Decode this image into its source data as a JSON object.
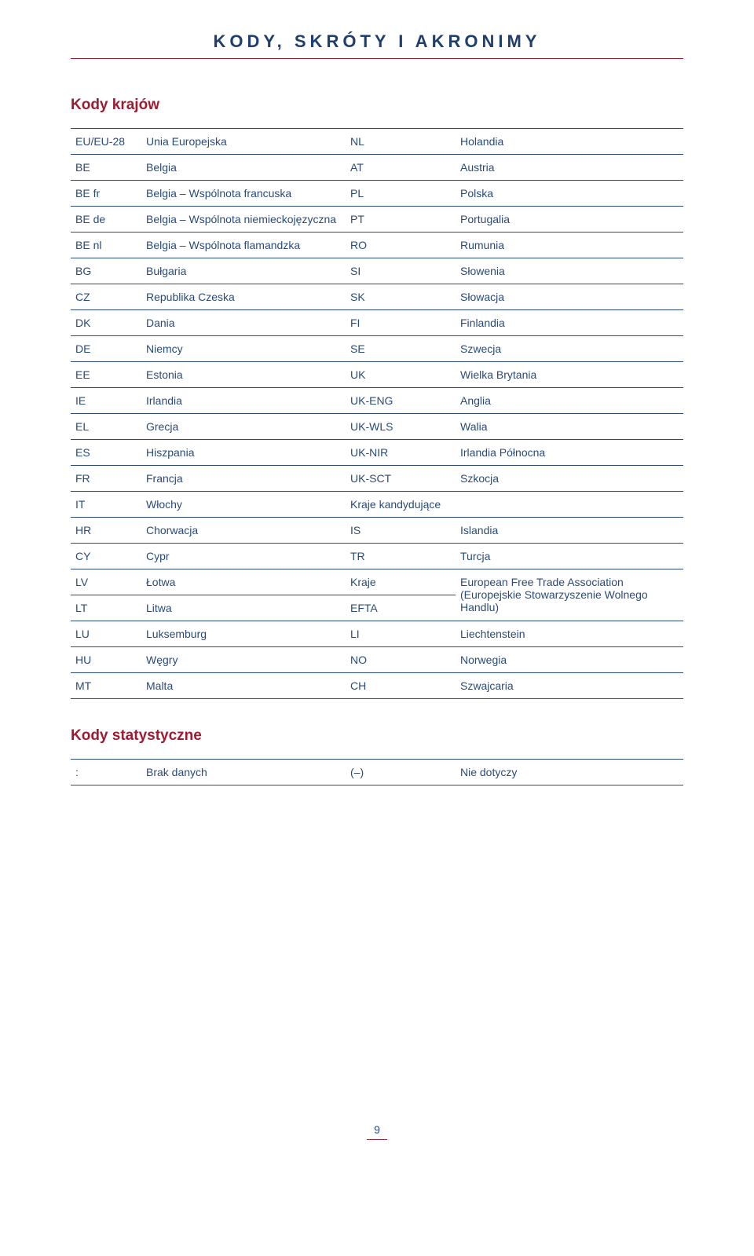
{
  "title": "KODY, SKRÓTY I AKRONIMY",
  "section1_heading": "Kody krajów",
  "rows": [
    {
      "c1": "EU/EU-28",
      "c2": "Unia Europejska",
      "c3": "NL",
      "c4": "Holandia"
    },
    {
      "c1": "BE",
      "c2": "Belgia",
      "c3": "AT",
      "c4": "Austria"
    },
    {
      "c1": "BE fr",
      "c2": "Belgia – Wspólnota francuska",
      "c3": "PL",
      "c4": "Polska"
    },
    {
      "c1": "BE de",
      "c2": "Belgia – Wspólnota niemieckojęzyczna",
      "c3": "PT",
      "c4": "Portugalia"
    },
    {
      "c1": "BE nl",
      "c2": "Belgia – Wspólnota flamandzka",
      "c3": "RO",
      "c4": "Rumunia"
    },
    {
      "c1": "BG",
      "c2": "Bułgaria",
      "c3": "SI",
      "c4": "Słowenia"
    },
    {
      "c1": "CZ",
      "c2": "Republika Czeska",
      "c3": "SK",
      "c4": "Słowacja"
    },
    {
      "c1": "DK",
      "c2": "Dania",
      "c3": "FI",
      "c4": "Finlandia"
    },
    {
      "c1": "DE",
      "c2": "Niemcy",
      "c3": "SE",
      "c4": "Szwecja"
    },
    {
      "c1": "EE",
      "c2": "Estonia",
      "c3": "UK",
      "c4": "Wielka Brytania"
    },
    {
      "c1": "IE",
      "c2": "Irlandia",
      "c3": "UK-ENG",
      "c4": "Anglia"
    },
    {
      "c1": "EL",
      "c2": "Grecja",
      "c3": "UK-WLS",
      "c4": "Walia"
    },
    {
      "c1": "ES",
      "c2": "Hiszpania",
      "c3": "UK-NIR",
      "c4": "Irlandia Północna"
    },
    {
      "c1": "FR",
      "c2": "Francja",
      "c3": "UK-SCT",
      "c4": "Szkocja"
    },
    {
      "c1": "IT",
      "c2": "Włochy",
      "c3": "Kraje kandydujące",
      "c4": ""
    },
    {
      "c1": "HR",
      "c2": "Chorwacja",
      "c3": "IS",
      "c4": "Islandia"
    },
    {
      "c1": "CY",
      "c2": "Cypr",
      "c3": "TR",
      "c4": "Turcja"
    }
  ],
  "merged": {
    "left1_c1": "LV",
    "left1_c2": "Łotwa",
    "left1_c3": "Kraje",
    "left2_c1": "LT",
    "left2_c2": "Litwa",
    "left2_c3": "EFTA",
    "right_text": "European Free Trade Association (Europejskie Stowarzyszenie Wolnego Handlu)"
  },
  "rows_after": [
    {
      "c1": "LU",
      "c2": "Luksemburg",
      "c3": "LI",
      "c4": "Liechtenstein"
    },
    {
      "c1": "HU",
      "c2": "Węgry",
      "c3": "NO",
      "c4": "Norwegia"
    },
    {
      "c1": "MT",
      "c2": "Malta",
      "c3": "CH",
      "c4": "Szwajcaria"
    }
  ],
  "section2_heading": "Kody statystyczne",
  "stat_row": {
    "c1": ":",
    "c2": "Brak danych",
    "c3": "(–)",
    "c4": "Nie dotyczy"
  },
  "page_number": "9"
}
